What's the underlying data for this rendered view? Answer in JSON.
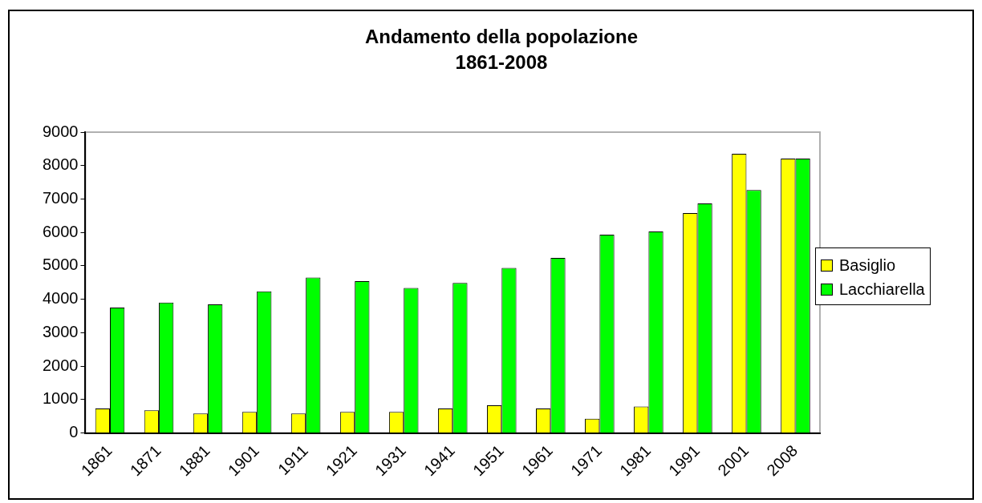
{
  "chart_data": {
    "type": "bar",
    "title": "Andamento della popolazione\n1861-2008",
    "categories": [
      "1861",
      "1871",
      "1881",
      "1901",
      "1911",
      "1921",
      "1931",
      "1941",
      "1951",
      "1961",
      "1971",
      "1981",
      "1991",
      "2001",
      "2008"
    ],
    "series": [
      {
        "name": "Basiglio",
        "color": "#ffff00",
        "values": [
          730,
          680,
          580,
          630,
          580,
          630,
          630,
          730,
          830,
          730,
          430,
          790,
          6580,
          8350,
          8210
        ]
      },
      {
        "name": "Lacchiarella",
        "color": "#00ff00",
        "values": [
          3750,
          3900,
          3850,
          4240,
          4650,
          4540,
          4340,
          4490,
          4940,
          5240,
          5930,
          6030,
          6870,
          7270,
          8210
        ]
      }
    ],
    "ylim": [
      0,
      9000
    ],
    "yticks": [
      0,
      1000,
      2000,
      3000,
      4000,
      5000,
      6000,
      7000,
      8000,
      9000
    ],
    "grid": false,
    "legend": "right"
  }
}
